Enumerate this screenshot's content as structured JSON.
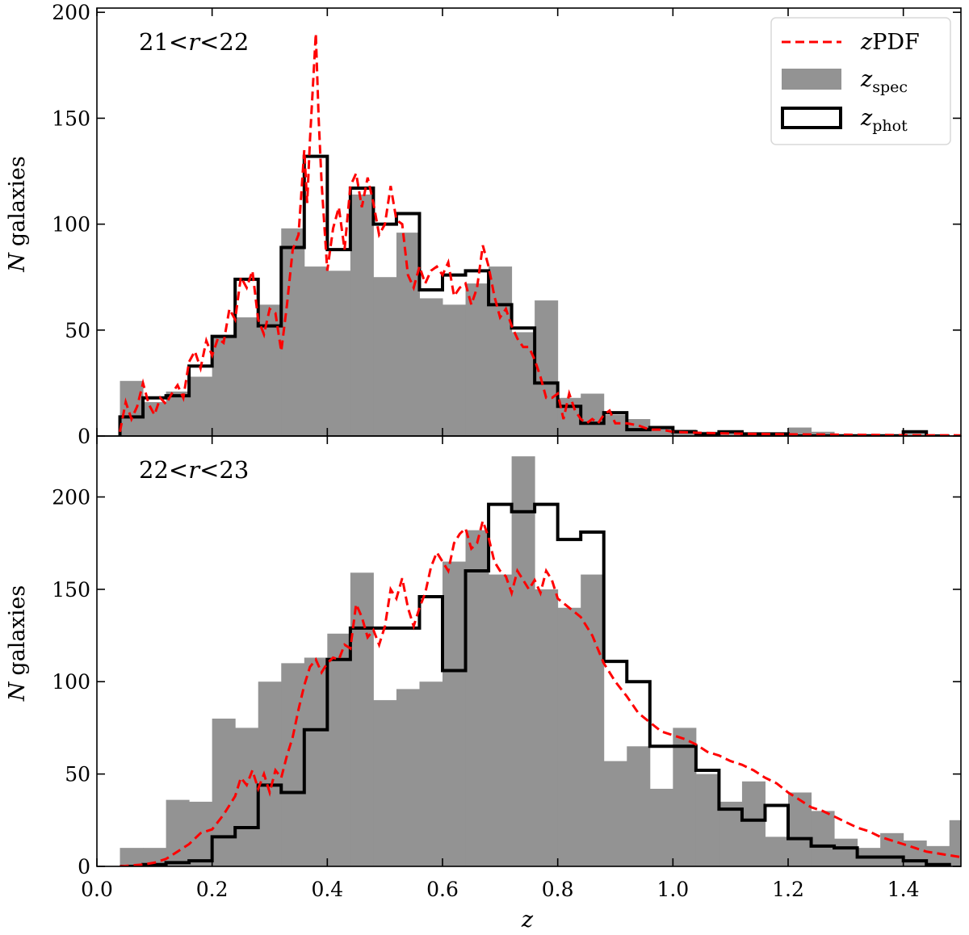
{
  "chart_data": {
    "type": "histogram",
    "xlabel": "z",
    "ylabel_prefix": "N",
    "ylabel": "galaxies",
    "xlim": [
      0.0,
      1.5
    ],
    "xticks": [
      0.0,
      0.2,
      0.4,
      0.6,
      0.8,
      1.0,
      1.2,
      1.4
    ],
    "xtick_labels": [
      "0.0",
      "0.2",
      "0.4",
      "0.6",
      "0.8",
      "1.0",
      "1.2",
      "1.4"
    ],
    "legend": {
      "position": "top-right",
      "entries": [
        {
          "key": "zpdf",
          "prefix": "z",
          "label": "PDF",
          "sub": "",
          "color": "#ff0000"
        },
        {
          "key": "zspec",
          "prefix": "z",
          "label": "",
          "sub": "spec",
          "color": "#939393"
        },
        {
          "key": "zphot",
          "prefix": "z",
          "label": "",
          "sub": "phot",
          "color": "#000000"
        }
      ]
    },
    "bin_width": 0.04,
    "panels": [
      {
        "label_pre": "21<",
        "label_var": "r",
        "label_post": "<22",
        "ylim": [
          0,
          202
        ],
        "yticks": [
          0,
          50,
          100,
          150,
          200
        ],
        "bin_edges_start": 0.04,
        "zspec": [
          26,
          16,
          21,
          28,
          47,
          56,
          62,
          98,
          80,
          78,
          114,
          75,
          96,
          65,
          62,
          72,
          80,
          49,
          64,
          18,
          20,
          10,
          8,
          4,
          3,
          2,
          2,
          1,
          1,
          4,
          2,
          1,
          1,
          1,
          1
        ],
        "zphot": [
          9,
          18,
          19,
          33,
          47,
          74,
          52,
          89,
          132,
          88,
          117,
          100,
          105,
          69,
          76,
          78,
          62,
          51,
          25,
          14,
          6,
          11,
          3,
          4,
          2,
          1,
          2,
          1,
          1,
          0,
          0,
          0,
          0,
          0,
          2,
          0
        ],
        "zpdf": {
          "x": [
            0.04,
            0.05,
            0.06,
            0.07,
            0.08,
            0.09,
            0.1,
            0.11,
            0.12,
            0.13,
            0.14,
            0.15,
            0.16,
            0.17,
            0.18,
            0.19,
            0.2,
            0.21,
            0.22,
            0.23,
            0.24,
            0.25,
            0.26,
            0.27,
            0.28,
            0.29,
            0.3,
            0.31,
            0.32,
            0.33,
            0.34,
            0.35,
            0.36,
            0.365,
            0.37,
            0.375,
            0.38,
            0.385,
            0.39,
            0.4,
            0.41,
            0.42,
            0.43,
            0.44,
            0.45,
            0.46,
            0.47,
            0.48,
            0.49,
            0.5,
            0.51,
            0.52,
            0.53,
            0.54,
            0.55,
            0.56,
            0.57,
            0.58,
            0.59,
            0.6,
            0.61,
            0.62,
            0.63,
            0.64,
            0.65,
            0.66,
            0.67,
            0.68,
            0.69,
            0.7,
            0.71,
            0.72,
            0.73,
            0.74,
            0.75,
            0.76,
            0.77,
            0.78,
            0.79,
            0.8,
            0.81,
            0.82,
            0.83,
            0.84,
            0.85,
            0.86,
            0.87,
            0.88,
            0.89,
            0.9,
            0.92,
            0.94,
            0.96,
            0.98,
            1.0,
            1.05,
            1.1,
            1.15,
            1.2,
            1.3,
            1.4,
            1.5
          ],
          "y": [
            2,
            16,
            8,
            14,
            25,
            15,
            10,
            18,
            15,
            20,
            24,
            18,
            35,
            40,
            32,
            45,
            38,
            46,
            44,
            60,
            55,
            75,
            70,
            78,
            55,
            48,
            60,
            58,
            40,
            62,
            88,
            95,
            135,
            110,
            140,
            165,
            190,
            150,
            120,
            78,
            98,
            108,
            88,
            118,
            124,
            108,
            122,
            110,
            95,
            100,
            118,
            102,
            100,
            76,
            70,
            80,
            72,
            78,
            80,
            76,
            82,
            66,
            70,
            72,
            62,
            70,
            90,
            80,
            66,
            56,
            60,
            52,
            46,
            42,
            42,
            36,
            28,
            18,
            18,
            20,
            8,
            20,
            12,
            8,
            6,
            8,
            6,
            10,
            12,
            6,
            6,
            5,
            3,
            3,
            2,
            1.5,
            1.2,
            1,
            0.8,
            0.6,
            0.4,
            0.3
          ]
        }
      },
      {
        "label_pre": "22<",
        "label_var": "r",
        "label_post": "<23",
        "ylim": [
          0,
          233
        ],
        "yticks": [
          0,
          50,
          100,
          150,
          200
        ],
        "bin_edges_start": 0.04,
        "zspec": [
          10,
          10,
          36,
          35,
          80,
          75,
          100,
          110,
          113,
          126,
          159,
          90,
          96,
          100,
          165,
          182,
          158,
          222,
          150,
          140,
          158,
          57,
          65,
          42,
          75,
          50,
          35,
          46,
          16,
          40,
          30,
          15,
          10,
          18,
          14,
          11,
          25,
          0
        ],
        "zphot": [
          0,
          1,
          2,
          3,
          16,
          21,
          44,
          40,
          74,
          112,
          129,
          129,
          129,
          146,
          106,
          160,
          196,
          192,
          196,
          177,
          181,
          111,
          100,
          65,
          65,
          52,
          31,
          25,
          33,
          15,
          11,
          10,
          5,
          5,
          3,
          1
        ],
        "zpdf": {
          "x": [
            0.04,
            0.08,
            0.1,
            0.12,
            0.14,
            0.16,
            0.18,
            0.2,
            0.22,
            0.24,
            0.25,
            0.26,
            0.27,
            0.28,
            0.29,
            0.3,
            0.31,
            0.32,
            0.33,
            0.34,
            0.35,
            0.36,
            0.37,
            0.38,
            0.39,
            0.4,
            0.41,
            0.42,
            0.43,
            0.44,
            0.45,
            0.46,
            0.47,
            0.48,
            0.49,
            0.5,
            0.51,
            0.52,
            0.53,
            0.54,
            0.55,
            0.56,
            0.57,
            0.58,
            0.59,
            0.6,
            0.61,
            0.62,
            0.63,
            0.64,
            0.65,
            0.66,
            0.67,
            0.68,
            0.69,
            0.7,
            0.71,
            0.72,
            0.73,
            0.74,
            0.75,
            0.76,
            0.77,
            0.78,
            0.79,
            0.8,
            0.82,
            0.84,
            0.86,
            0.88,
            0.9,
            0.92,
            0.94,
            0.96,
            0.98,
            1.0,
            1.02,
            1.04,
            1.06,
            1.08,
            1.1,
            1.12,
            1.14,
            1.16,
            1.18,
            1.2,
            1.22,
            1.24,
            1.26,
            1.28,
            1.3,
            1.32,
            1.34,
            1.36,
            1.38,
            1.4,
            1.42,
            1.44,
            1.46,
            1.48,
            1.5
          ],
          "y": [
            0,
            1,
            2,
            4,
            8,
            12,
            18,
            20,
            28,
            38,
            48,
            44,
            52,
            42,
            50,
            40,
            52,
            48,
            60,
            70,
            85,
            98,
            108,
            112,
            105,
            110,
            113,
            112,
            120,
            118,
            142,
            135,
            124,
            128,
            120,
            130,
            150,
            145,
            156,
            140,
            130,
            140,
            148,
            162,
            170,
            165,
            160,
            175,
            180,
            183,
            172,
            175,
            187,
            178,
            165,
            160,
            157,
            148,
            160,
            155,
            150,
            155,
            148,
            160,
            155,
            145,
            140,
            135,
            125,
            110,
            100,
            92,
            83,
            78,
            73,
            71,
            69,
            66,
            62,
            60,
            57,
            55,
            52,
            48,
            45,
            40,
            36,
            32,
            30,
            27,
            24,
            21,
            19,
            16,
            14,
            12,
            10,
            8,
            7,
            6,
            5
          ]
        }
      }
    ]
  }
}
